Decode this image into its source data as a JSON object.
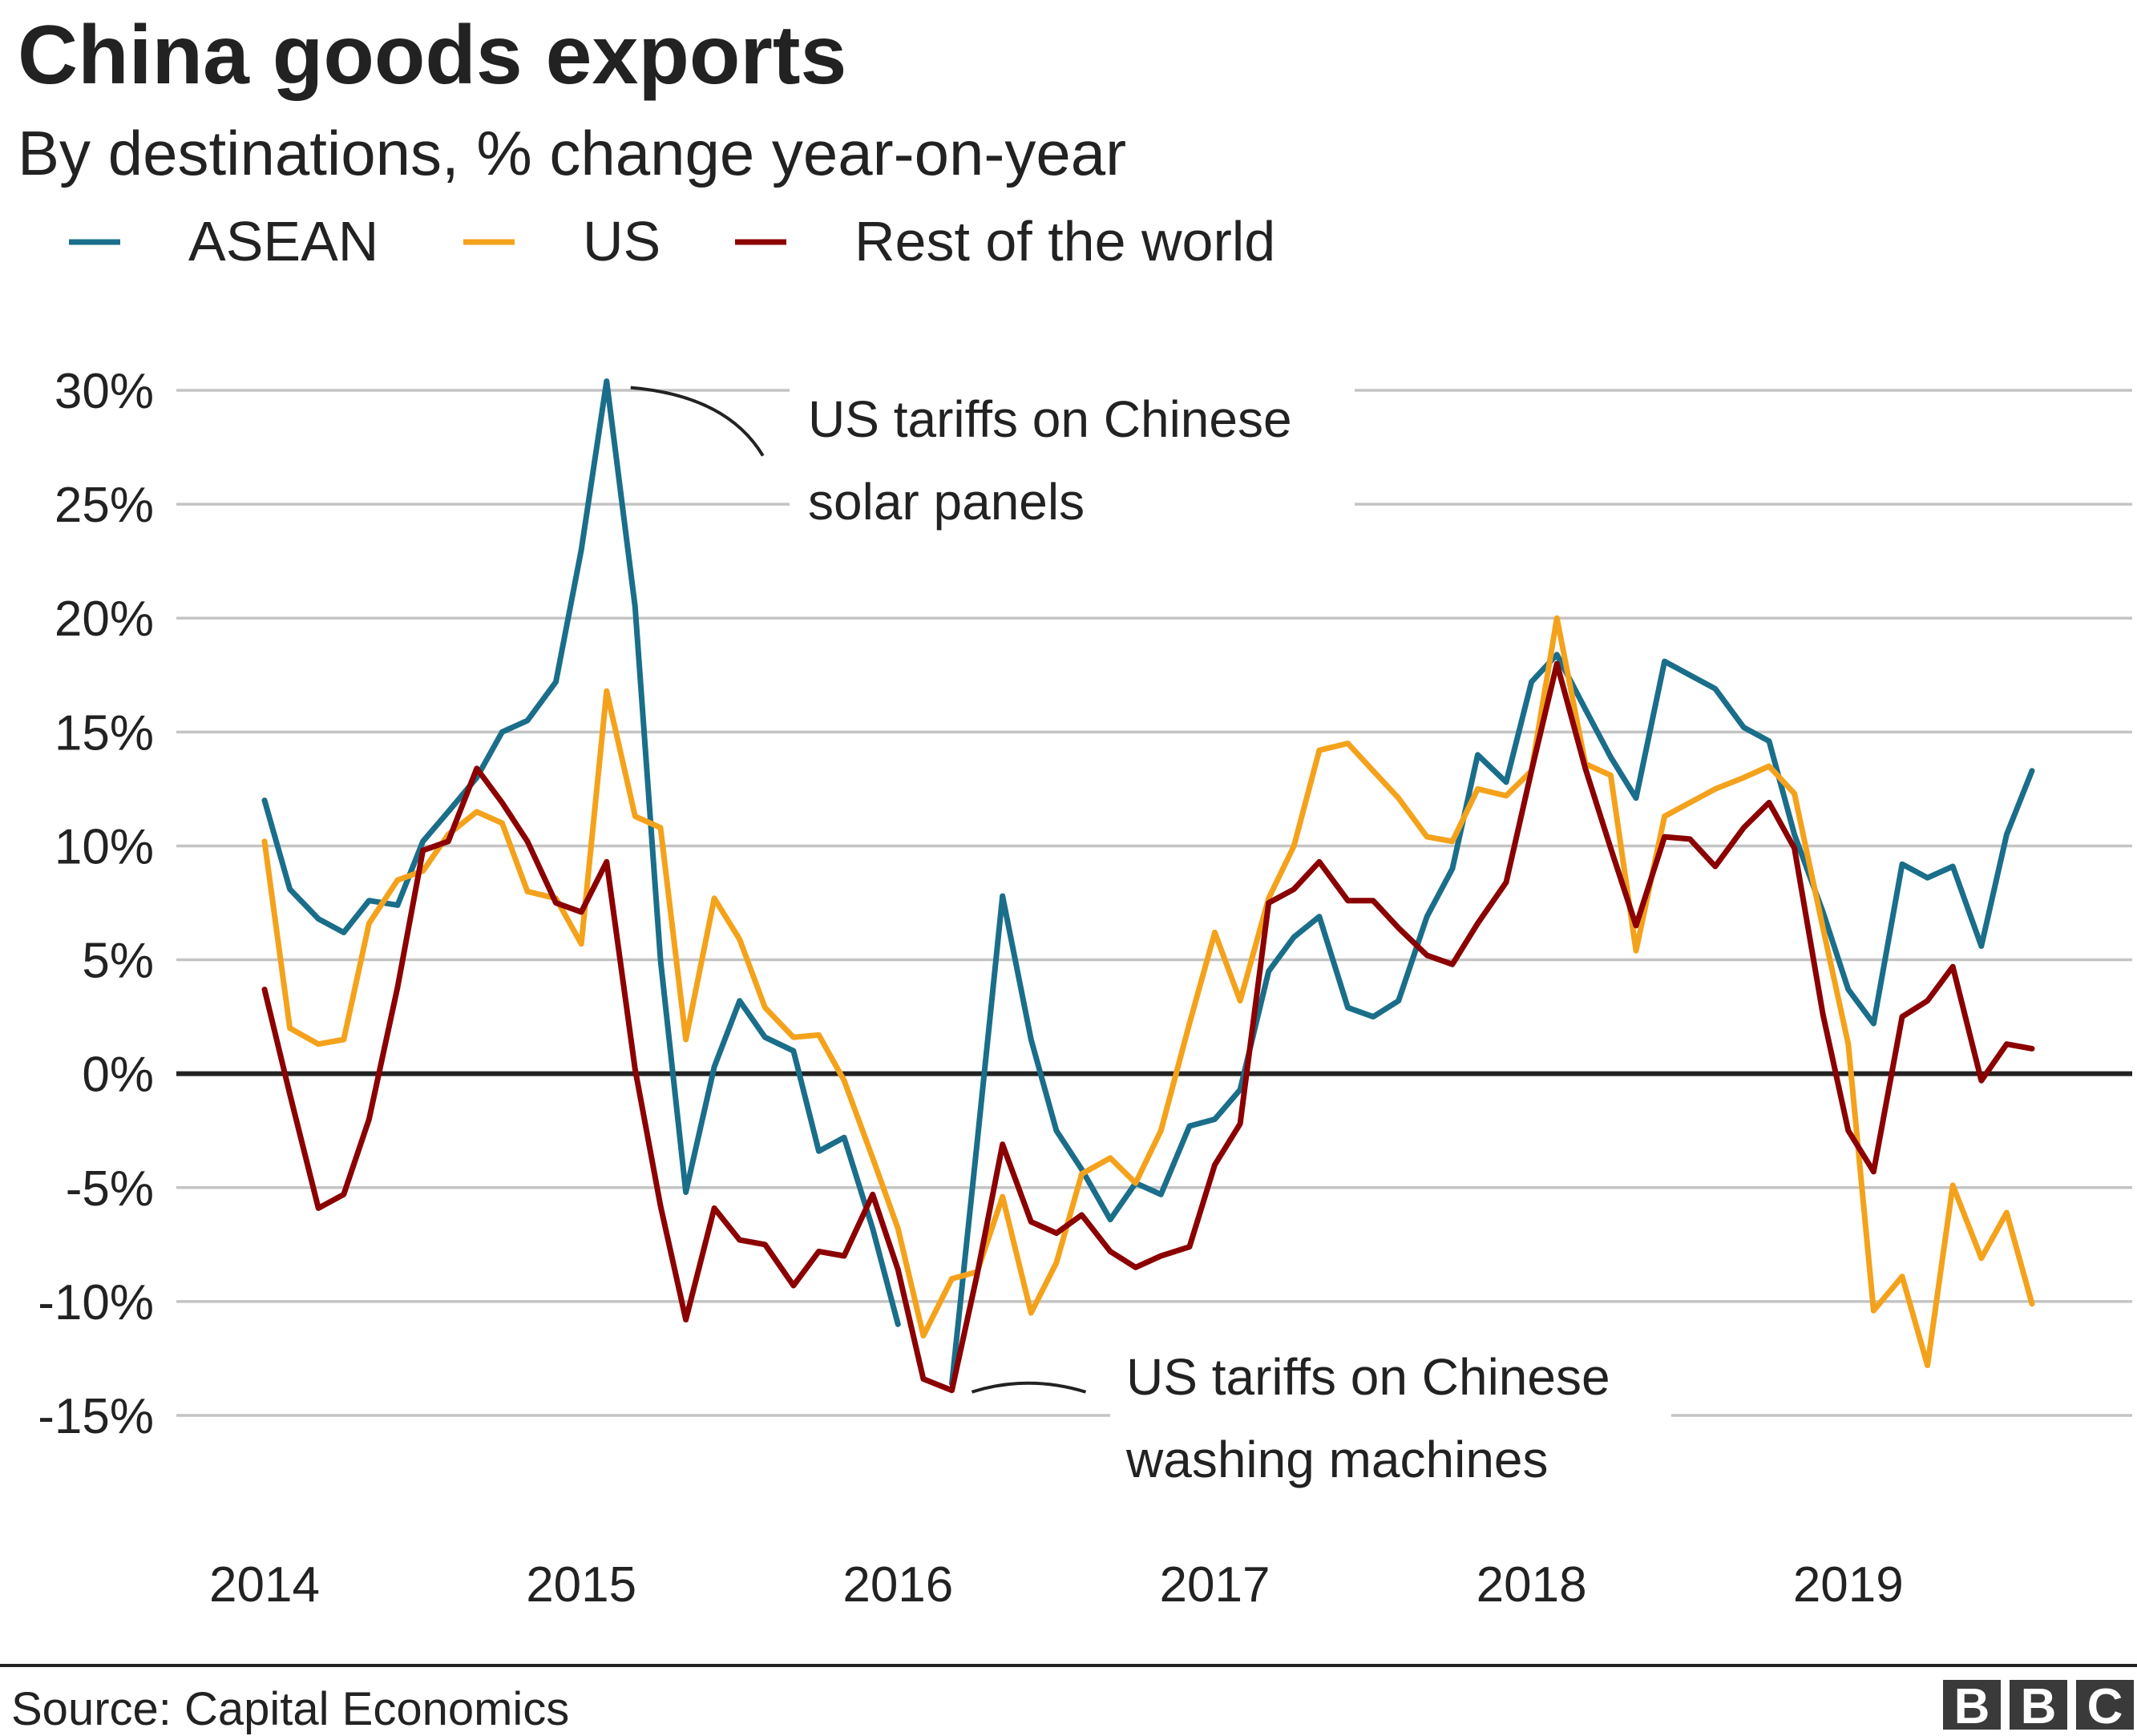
{
  "chart_data": {
    "type": "line",
    "title": "China goods exports",
    "subtitle": "By destinations, % change year-on-year",
    "xlabel": "",
    "ylabel": "",
    "ylim": [
      -15,
      30
    ],
    "y_ticks": [
      30,
      25,
      20,
      15,
      10,
      5,
      0,
      -5,
      -10,
      -15
    ],
    "y_tick_labels": [
      "30%",
      "25%",
      "20%",
      "15%",
      "10%",
      "5%",
      "0%",
      "-5%",
      "-10%",
      "-15%"
    ],
    "x_tick_labels": [
      "2014",
      "2015",
      "2016",
      "2017",
      "2018",
      "2019"
    ],
    "x_start": 2014,
    "x_end": 2019.58,
    "legend_position": "top-left",
    "series": [
      {
        "name": "ASEAN",
        "color": "#1a6e8a",
        "segments": [
          [
            [
              2014.0,
              12
            ],
            [
              2014.08,
              8.1
            ],
            [
              2014.17,
              6.8
            ],
            [
              2014.25,
              6.2
            ],
            [
              2014.33,
              7.6
            ],
            [
              2014.42,
              7.4
            ],
            [
              2014.5,
              10.2
            ],
            [
              2014.58,
              11.5
            ],
            [
              2014.67,
              13
            ],
            [
              2014.75,
              15
            ],
            [
              2014.83,
              15.5
            ],
            [
              2014.92,
              17.2
            ],
            [
              2015.0,
              23
            ],
            [
              2015.08,
              30.4
            ],
            [
              2015.17,
              20.5
            ],
            [
              2015.25,
              5
            ],
            [
              2015.33,
              -5.2
            ],
            [
              2015.42,
              0.3
            ],
            [
              2015.5,
              3.2
            ],
            [
              2015.58,
              1.6
            ],
            [
              2015.67,
              1
            ],
            [
              2015.75,
              -3.4
            ],
            [
              2015.83,
              -2.8
            ],
            [
              2015.92,
              -6.8
            ],
            [
              2016.0,
              -11
            ]
          ],
          [
            [
              2016.17,
              -13.6
            ],
            [
              2016.25,
              -3
            ],
            [
              2016.33,
              7.8
            ],
            [
              2016.42,
              1.5
            ],
            [
              2016.5,
              -2.5
            ],
            [
              2016.58,
              -4.2
            ],
            [
              2016.67,
              -6.4
            ],
            [
              2016.75,
              -4.8
            ],
            [
              2016.83,
              -5.3
            ],
            [
              2016.92,
              -2.3
            ],
            [
              2017.0,
              -2
            ],
            [
              2017.08,
              -0.7
            ],
            [
              2017.17,
              4.5
            ],
            [
              2017.25,
              6
            ],
            [
              2017.33,
              6.9
            ],
            [
              2017.42,
              2.9
            ],
            [
              2017.5,
              2.5
            ],
            [
              2017.58,
              3.2
            ],
            [
              2017.67,
              6.9
            ],
            [
              2017.75,
              9
            ],
            [
              2017.83,
              14
            ],
            [
              2017.92,
              12.8
            ],
            [
              2018.0,
              17.2
            ],
            [
              2018.08,
              18.4
            ],
            [
              2018.17,
              16
            ],
            [
              2018.25,
              13.9
            ],
            [
              2018.33,
              12.1
            ],
            [
              2018.42,
              18.1
            ],
            [
              2018.5,
              17.5
            ],
            [
              2018.58,
              16.9
            ],
            [
              2018.67,
              15.2
            ],
            [
              2018.75,
              14.6
            ],
            [
              2018.83,
              10.5
            ],
            [
              2018.92,
              7.1
            ],
            [
              2019.0,
              3.7
            ],
            [
              2019.08,
              2.2
            ],
            [
              2019.17,
              9.2
            ],
            [
              2019.25,
              8.6
            ],
            [
              2019.33,
              9.1
            ],
            [
              2019.42,
              5.6
            ],
            [
              2019.5,
              10.5
            ],
            [
              2019.58,
              13.3
            ]
          ]
        ]
      },
      {
        "name": "US",
        "color": "#f4a21b",
        "segments": [
          [
            [
              2014.0,
              10.2
            ],
            [
              2014.08,
              2
            ],
            [
              2014.17,
              1.3
            ],
            [
              2014.25,
              1.5
            ],
            [
              2014.33,
              6.6
            ],
            [
              2014.42,
              8.5
            ],
            [
              2014.5,
              8.9
            ],
            [
              2014.58,
              10.5
            ],
            [
              2014.67,
              11.5
            ],
            [
              2014.75,
              11
            ],
            [
              2014.83,
              8
            ],
            [
              2014.92,
              7.7
            ],
            [
              2015.0,
              5.7
            ],
            [
              2015.08,
              16.8
            ],
            [
              2015.17,
              11.3
            ],
            [
              2015.25,
              10.8
            ],
            [
              2015.33,
              1.5
            ],
            [
              2015.42,
              7.7
            ],
            [
              2015.5,
              5.9
            ],
            [
              2015.58,
              2.9
            ],
            [
              2015.67,
              1.6
            ],
            [
              2015.75,
              1.7
            ],
            [
              2015.83,
              -0.3
            ],
            [
              2015.92,
              -3.7
            ],
            [
              2016.0,
              -6.8
            ],
            [
              2016.08,
              -11.5
            ],
            [
              2016.17,
              -9
            ],
            [
              2016.25,
              -8.7
            ],
            [
              2016.33,
              -5.4
            ],
            [
              2016.42,
              -10.5
            ],
            [
              2016.5,
              -8.3
            ],
            [
              2016.58,
              -4.4
            ],
            [
              2016.67,
              -3.7
            ],
            [
              2016.75,
              -4.8
            ],
            [
              2016.83,
              -2.5
            ],
            [
              2016.92,
              2.2
            ],
            [
              2017.0,
              6.2
            ],
            [
              2017.08,
              3.2
            ],
            [
              2017.17,
              7.7
            ],
            [
              2017.25,
              10
            ],
            [
              2017.33,
              14.2
            ],
            [
              2017.42,
              14.5
            ],
            [
              2017.5,
              13.3
            ],
            [
              2017.58,
              12.1
            ],
            [
              2017.67,
              10.4
            ],
            [
              2017.75,
              10.2
            ],
            [
              2017.83,
              12.5
            ],
            [
              2017.92,
              12.2
            ],
            [
              2018.0,
              13.3
            ],
            [
              2018.08,
              20
            ],
            [
              2018.17,
              13.6
            ],
            [
              2018.25,
              13.1
            ],
            [
              2018.33,
              5.4
            ],
            [
              2018.42,
              11.3
            ],
            [
              2018.5,
              11.9
            ],
            [
              2018.58,
              12.5
            ],
            [
              2018.67,
              13
            ],
            [
              2018.75,
              13.5
            ],
            [
              2018.83,
              12.3
            ],
            [
              2018.92,
              6.4
            ],
            [
              2019.0,
              1.3
            ],
            [
              2019.08,
              -10.4
            ],
            [
              2019.17,
              -8.9
            ],
            [
              2019.25,
              -12.8
            ],
            [
              2019.33,
              -4.9
            ],
            [
              2019.42,
              -8.1
            ],
            [
              2019.5,
              -6.1
            ],
            [
              2019.58,
              -10.1
            ]
          ]
        ]
      },
      {
        "name": "Rest of the world",
        "color": "#8b0000",
        "segments": [
          [
            [
              2014.0,
              3.7
            ],
            [
              2014.08,
              -0.9
            ],
            [
              2014.17,
              -5.9
            ],
            [
              2014.25,
              -5.3
            ],
            [
              2014.33,
              -2
            ],
            [
              2014.42,
              3.8
            ],
            [
              2014.5,
              9.8
            ],
            [
              2014.58,
              10.2
            ],
            [
              2014.67,
              13.4
            ],
            [
              2014.75,
              11.9
            ],
            [
              2014.83,
              10.2
            ],
            [
              2014.92,
              7.5
            ],
            [
              2015.0,
              7.1
            ],
            [
              2015.08,
              9.3
            ],
            [
              2015.17,
              0.2
            ],
            [
              2015.25,
              -5.8
            ],
            [
              2015.33,
              -10.8
            ],
            [
              2015.42,
              -5.9
            ],
            [
              2015.5,
              -7.3
            ],
            [
              2015.58,
              -7.5
            ],
            [
              2015.67,
              -9.3
            ],
            [
              2015.75,
              -7.8
            ],
            [
              2015.83,
              -8
            ],
            [
              2015.92,
              -5.3
            ],
            [
              2016.0,
              -8.6
            ],
            [
              2016.08,
              -13.4
            ],
            [
              2016.17,
              -13.9
            ],
            [
              2016.25,
              -8.8
            ],
            [
              2016.33,
              -3.1
            ],
            [
              2016.42,
              -6.5
            ],
            [
              2016.5,
              -7
            ],
            [
              2016.58,
              -6.2
            ],
            [
              2016.67,
              -7.8
            ],
            [
              2016.75,
              -8.5
            ],
            [
              2016.83,
              -8
            ],
            [
              2016.92,
              -7.6
            ],
            [
              2017.0,
              -4
            ],
            [
              2017.08,
              -2.2
            ],
            [
              2017.17,
              7.5
            ],
            [
              2017.25,
              8.1
            ],
            [
              2017.33,
              9.3
            ],
            [
              2017.42,
              7.6
            ],
            [
              2017.5,
              7.6
            ],
            [
              2017.58,
              6.4
            ],
            [
              2017.67,
              5.2
            ],
            [
              2017.75,
              4.8
            ],
            [
              2017.83,
              6.6
            ],
            [
              2017.92,
              8.4
            ],
            [
              2018.0,
              13.3
            ],
            [
              2018.08,
              18
            ],
            [
              2018.17,
              13.4
            ],
            [
              2018.25,
              9.9
            ],
            [
              2018.33,
              6.5
            ],
            [
              2018.42,
              10.4
            ],
            [
              2018.5,
              10.3
            ],
            [
              2018.58,
              9.1
            ],
            [
              2018.67,
              10.8
            ],
            [
              2018.75,
              11.9
            ],
            [
              2018.83,
              9.9
            ],
            [
              2018.92,
              2.6
            ],
            [
              2019.0,
              -2.5
            ],
            [
              2019.08,
              -4.3
            ],
            [
              2019.17,
              2.5
            ],
            [
              2019.25,
              3.2
            ],
            [
              2019.33,
              4.7
            ],
            [
              2019.42,
              -0.3
            ],
            [
              2019.5,
              1.3
            ],
            [
              2019.58,
              1.1
            ]
          ]
        ]
      }
    ],
    "annotations": [
      {
        "lines": [
          "US tariffs on Chinese",
          "solar panels"
        ],
        "x": 2015.08,
        "y": 30.4
      },
      {
        "lines": [
          "US tariffs on Chinese",
          "washing machines"
        ],
        "x": 2016.17,
        "y": -13.9
      }
    ]
  },
  "footer": {
    "source": "Source: Capital Economics",
    "logo": [
      "B",
      "B",
      "C"
    ]
  }
}
